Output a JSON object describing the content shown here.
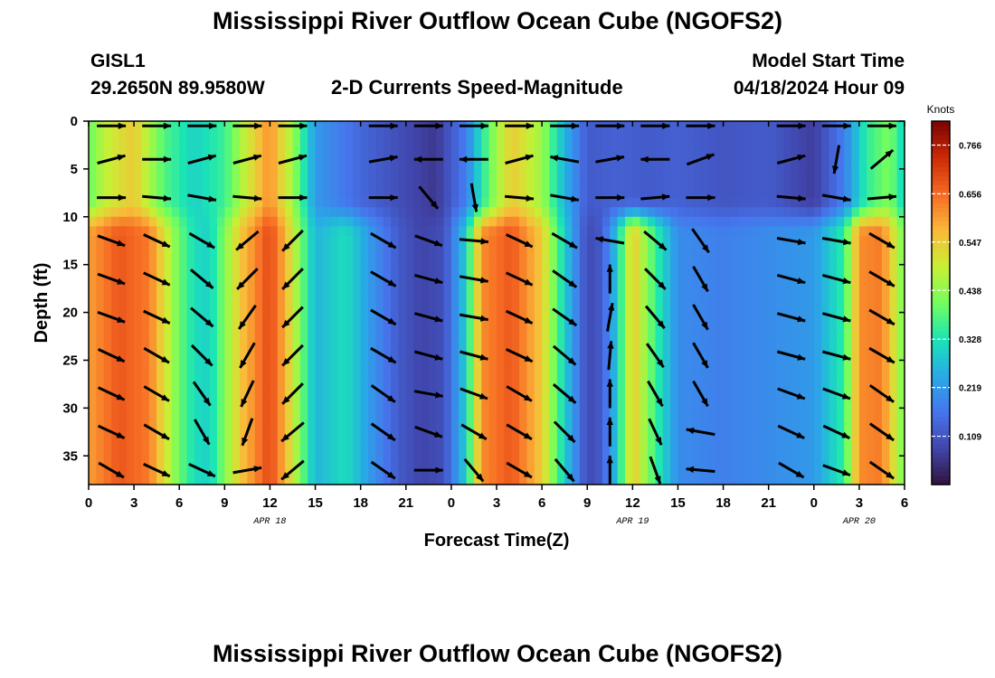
{
  "header": {
    "title": "Mississippi River Outflow Ocean Cube (NGOFS2)",
    "station_id": "GISL1",
    "station_coords": "29.2650N  89.9580W",
    "subtitle": "2-D Currents Speed-Magnitude",
    "model_start_label": "Model Start Time",
    "model_start_value": "04/18/2024 Hour 09"
  },
  "footer": {
    "title": "Mississippi River Outflow Ocean Cube (NGOFS2)"
  },
  "chart_data": {
    "type": "heatmap",
    "title": "2-D Currents Speed-Magnitude",
    "xlabel": "Forecast Time(Z)",
    "ylabel": "Depth (ft)",
    "x_tick_labels": [
      "0",
      "3",
      "6",
      "9",
      "12",
      "15",
      "18",
      "21",
      "0",
      "3",
      "6",
      "9",
      "12",
      "15",
      "18",
      "21",
      "0",
      "3",
      "6"
    ],
    "x_range_hours": [
      0,
      54
    ],
    "date_labels": [
      {
        "hour": 12,
        "label": "APR 18"
      },
      {
        "hour": 36,
        "label": "APR 19"
      },
      {
        "hour": 51,
        "label": "APR 20"
      }
    ],
    "y_ticks": [
      0,
      5,
      10,
      15,
      20,
      25,
      30,
      35
    ],
    "ylim": [
      38,
      0
    ],
    "colorbar": {
      "label": "Knots",
      "ticks": [
        0.109,
        0.219,
        0.328,
        0.438,
        0.547,
        0.656,
        0.766
      ],
      "tick_labels": [
        "0.109",
        "0.219",
        "0.328",
        "0.438",
        "0.547",
        "0.656",
        "0.766"
      ],
      "range": [
        0,
        0.82
      ],
      "colormap": "turbo"
    },
    "layers": {
      "surface_depths_ft": [
        0.5,
        4,
        8
      ],
      "deep_depths_ft": [
        12.5,
        16.5,
        20.5,
        24.5,
        28.5,
        32.5,
        36.5
      ]
    },
    "surface_speed_knots": [
      {
        "hour": 0,
        "value": 0.4
      },
      {
        "hour": 1,
        "value": 0.48
      },
      {
        "hour": 3,
        "value": 0.55
      },
      {
        "hour": 5,
        "value": 0.38
      },
      {
        "hour": 7,
        "value": 0.3
      },
      {
        "hour": 9,
        "value": 0.36
      },
      {
        "hour": 10.5,
        "value": 0.5
      },
      {
        "hour": 12,
        "value": 0.62
      },
      {
        "hour": 13.5,
        "value": 0.45
      },
      {
        "hour": 15,
        "value": 0.22
      },
      {
        "hour": 18,
        "value": 0.14
      },
      {
        "hour": 21,
        "value": 0.09
      },
      {
        "hour": 23,
        "value": 0.06
      },
      {
        "hour": 25,
        "value": 0.18
      },
      {
        "hour": 26.5,
        "value": 0.4
      },
      {
        "hour": 28,
        "value": 0.55
      },
      {
        "hour": 30,
        "value": 0.45
      },
      {
        "hour": 31.5,
        "value": 0.26
      },
      {
        "hour": 33,
        "value": 0.12
      },
      {
        "hour": 35,
        "value": 0.13
      },
      {
        "hour": 37,
        "value": 0.12
      },
      {
        "hour": 39,
        "value": 0.13
      },
      {
        "hour": 42,
        "value": 0.11
      },
      {
        "hour": 45,
        "value": 0.12
      },
      {
        "hour": 48,
        "value": 0.07
      },
      {
        "hour": 50,
        "value": 0.18
      },
      {
        "hour": 51.5,
        "value": 0.35
      },
      {
        "hour": 53,
        "value": 0.42
      },
      {
        "hour": 54,
        "value": 0.3
      }
    ],
    "deep_speed_knots": [
      {
        "hour": 0,
        "value": 0.6
      },
      {
        "hour": 2,
        "value": 0.68
      },
      {
        "hour": 4,
        "value": 0.64
      },
      {
        "hour": 6,
        "value": 0.4
      },
      {
        "hour": 7,
        "value": 0.32
      },
      {
        "hour": 8,
        "value": 0.3
      },
      {
        "hour": 10,
        "value": 0.55
      },
      {
        "hour": 12,
        "value": 0.7
      },
      {
        "hour": 13,
        "value": 0.58
      },
      {
        "hour": 15,
        "value": 0.26
      },
      {
        "hour": 17,
        "value": 0.32
      },
      {
        "hour": 19,
        "value": 0.2
      },
      {
        "hour": 20.5,
        "value": 0.12
      },
      {
        "hour": 22,
        "value": 0.08
      },
      {
        "hour": 23.5,
        "value": 0.1
      },
      {
        "hour": 25,
        "value": 0.3
      },
      {
        "hour": 26,
        "value": 0.62
      },
      {
        "hour": 28,
        "value": 0.68
      },
      {
        "hour": 30,
        "value": 0.55
      },
      {
        "hour": 31.5,
        "value": 0.3
      },
      {
        "hour": 33,
        "value": 0.09
      },
      {
        "hour": 34,
        "value": 0.12
      },
      {
        "hour": 35,
        "value": 0.3
      },
      {
        "hour": 36,
        "value": 0.56
      },
      {
        "hour": 37.5,
        "value": 0.36
      },
      {
        "hour": 39,
        "value": 0.2
      },
      {
        "hour": 42,
        "value": 0.18
      },
      {
        "hour": 45,
        "value": 0.2
      },
      {
        "hour": 48,
        "value": 0.22
      },
      {
        "hour": 50,
        "value": 0.35
      },
      {
        "hour": 51,
        "value": 0.62
      },
      {
        "hour": 52.5,
        "value": 0.64
      },
      {
        "hour": 54,
        "value": 0.4
      }
    ],
    "arrow_columns": [
      {
        "hour": 1.5,
        "surface_deg": [
          0,
          15,
          0
        ],
        "deep_deg": [
          -20,
          -20,
          -20,
          -25,
          -25,
          -25,
          -30
        ]
      },
      {
        "hour": 4.5,
        "surface_deg": [
          0,
          0,
          -5
        ],
        "deep_deg": [
          -25,
          -25,
          -25,
          -30,
          -30,
          -30,
          -25
        ]
      },
      {
        "hour": 7.5,
        "surface_deg": [
          0,
          15,
          -10
        ],
        "deep_deg": [
          -30,
          -40,
          -40,
          -45,
          -55,
          -60,
          -25
        ]
      },
      {
        "hour": 10.5,
        "surface_deg": [
          0,
          15,
          -5
        ],
        "deep_deg": [
          -140,
          -135,
          -125,
          -120,
          -115,
          -110,
          10
        ]
      },
      {
        "hour": 13.5,
        "surface_deg": [
          0,
          15,
          0
        ],
        "deep_deg": [
          -135,
          -135,
          -135,
          -135,
          -135,
          -140,
          -140
        ]
      },
      {
        "hour": 19.5,
        "surface_deg": [
          0,
          10,
          0
        ],
        "deep_deg": [
          -30,
          -30,
          -30,
          -30,
          -35,
          -35,
          -35
        ]
      },
      {
        "hour": 22.5,
        "surface_deg": [
          0,
          180,
          -50
        ],
        "deep_deg": [
          -20,
          -15,
          -15,
          -15,
          -10,
          -20,
          0
        ]
      },
      {
        "hour": 25.5,
        "surface_deg": [
          0,
          180,
          -80
        ],
        "deep_deg": [
          -5,
          -10,
          -10,
          -15,
          -20,
          -30,
          -50
        ]
      },
      {
        "hour": 28.5,
        "surface_deg": [
          0,
          15,
          -5
        ],
        "deep_deg": [
          -25,
          -25,
          -25,
          -25,
          -30,
          -30,
          -30
        ]
      },
      {
        "hour": 31.5,
        "surface_deg": [
          0,
          170,
          -10
        ],
        "deep_deg": [
          -30,
          -35,
          -35,
          -40,
          -40,
          -45,
          -50
        ]
      },
      {
        "hour": 34.5,
        "surface_deg": [
          0,
          10,
          0
        ],
        "deep_deg": [
          170,
          90,
          80,
          85,
          90,
          90,
          90
        ]
      },
      {
        "hour": 37.5,
        "surface_deg": [
          0,
          180,
          5
        ],
        "deep_deg": [
          -40,
          -45,
          -50,
          -55,
          -60,
          -65,
          -70
        ]
      },
      {
        "hour": 40.5,
        "surface_deg": [
          0,
          20,
          0
        ],
        "deep_deg": [
          -55,
          -60,
          -60,
          -60,
          -60,
          170,
          175
        ]
      },
      {
        "hour": 46.5,
        "surface_deg": [
          0,
          15,
          -5
        ],
        "deep_deg": [
          -10,
          -15,
          -15,
          -15,
          -20,
          -25,
          -30
        ]
      },
      {
        "hour": 49.5,
        "surface_deg": [
          0,
          -100,
          -10
        ],
        "deep_deg": [
          -10,
          -15,
          -15,
          -15,
          -20,
          -25,
          -20
        ]
      },
      {
        "hour": 52.5,
        "surface_deg": [
          0,
          40,
          5
        ],
        "deep_deg": [
          -30,
          -30,
          -30,
          -30,
          -35,
          -35,
          -35
        ]
      }
    ]
  }
}
